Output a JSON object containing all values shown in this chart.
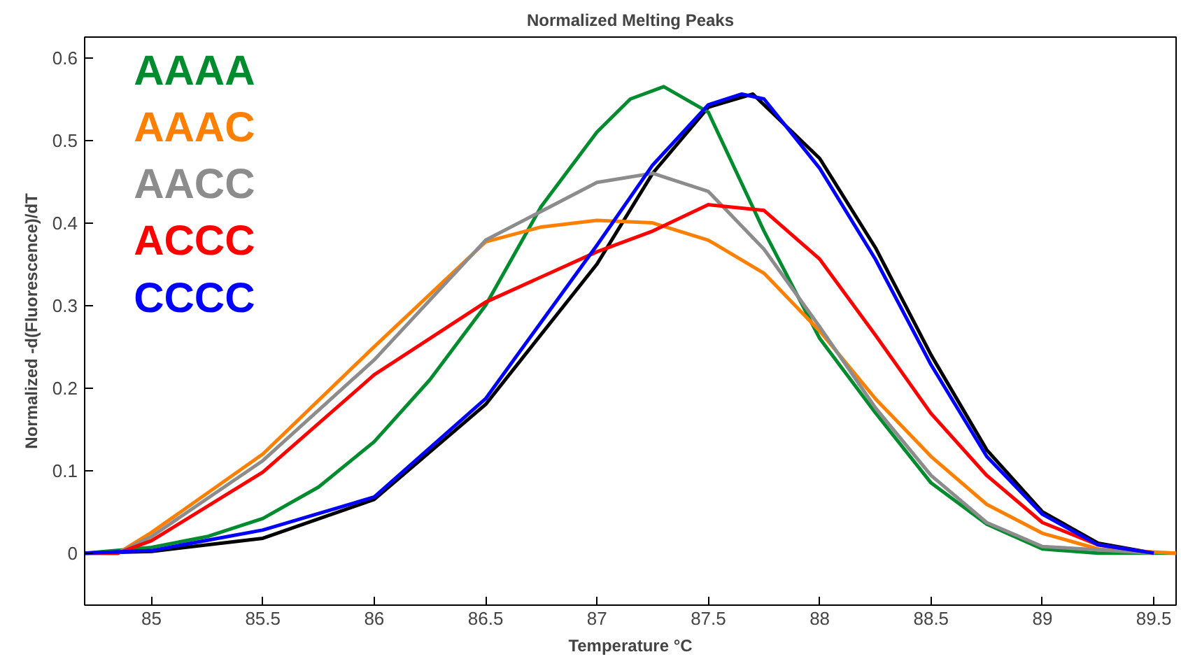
{
  "chart_data": {
    "type": "line",
    "title": "Normalized Melting Peaks",
    "xlabel": "Temperature °C",
    "ylabel": "Normalized -d(Fluorescence)/dT",
    "xlim": [
      84.7,
      89.6
    ],
    "ylim": [
      -0.063,
      0.625
    ],
    "xticks": [
      85,
      85.5,
      86,
      86.5,
      87,
      87.5,
      88,
      88.5,
      89,
      89.5
    ],
    "yticks": [
      0,
      0.1,
      0.2,
      0.3,
      0.4,
      0.5,
      0.6
    ],
    "grid": false,
    "legend": "top left",
    "marker": "none",
    "line_style": "solid",
    "series": [
      {
        "color": "#000000",
        "x": [
          84.7,
          85,
          85.5,
          86,
          86.5,
          87,
          87.25,
          87.5,
          87.7,
          88,
          88.25,
          88.5,
          88.75,
          89,
          89.25,
          89.5
        ],
        "values": [
          0,
          0.002,
          0.018,
          0.065,
          0.18,
          0.35,
          0.46,
          0.54,
          0.556,
          0.478,
          0.37,
          0.24,
          0.125,
          0.05,
          0.012,
          0
        ]
      },
      {
        "name": "AAAA",
        "color": "#008c2e",
        "x": [
          84.7,
          85,
          85.25,
          85.5,
          85.75,
          86,
          86.25,
          86.5,
          86.75,
          87,
          87.15,
          87.3,
          87.5,
          87.75,
          88,
          88.25,
          88.5,
          88.75,
          89,
          89.25,
          89.6
        ],
        "values": [
          0,
          0.007,
          0.02,
          0.042,
          0.08,
          0.135,
          0.21,
          0.3,
          0.42,
          0.51,
          0.55,
          0.565,
          0.534,
          0.39,
          0.26,
          0.17,
          0.085,
          0.035,
          0.005,
          0,
          0
        ]
      },
      {
        "name": "AAAC",
        "color": "#ff8000",
        "x": [
          84.7,
          84.85,
          85,
          85.5,
          86,
          86.5,
          86.75,
          87,
          87.25,
          87.5,
          87.75,
          88,
          88.25,
          88.5,
          88.75,
          89,
          89.25,
          89.6
        ],
        "values": [
          0,
          0,
          0.025,
          0.12,
          0.25,
          0.377,
          0.395,
          0.403,
          0.4,
          0.379,
          0.339,
          0.269,
          0.187,
          0.117,
          0.059,
          0.024,
          0.005,
          0
        ]
      },
      {
        "name": "AACC",
        "color": "#8c8c8c",
        "x": [
          84.7,
          84.85,
          85,
          85.5,
          86,
          86.5,
          87,
          87.25,
          87.5,
          87.75,
          88,
          88.25,
          88.5,
          88.75,
          89,
          89.5
        ],
        "values": [
          0,
          0,
          0.02,
          0.112,
          0.234,
          0.379,
          0.449,
          0.46,
          0.438,
          0.368,
          0.274,
          0.176,
          0.094,
          0.037,
          0.008,
          0
        ]
      },
      {
        "name": "ACCC",
        "color": "#ff0000",
        "x": [
          84.7,
          84.85,
          85,
          85.5,
          86,
          86.5,
          87,
          87.25,
          87.5,
          87.75,
          88,
          88.25,
          88.5,
          88.75,
          89,
          89.25,
          89.5
        ],
        "values": [
          0,
          0,
          0.015,
          0.098,
          0.216,
          0.304,
          0.365,
          0.39,
          0.422,
          0.415,
          0.356,
          0.264,
          0.169,
          0.094,
          0.037,
          0.01,
          0
        ]
      },
      {
        "name": "CCCC",
        "color": "#0000ff",
        "x": [
          84.7,
          85,
          85.5,
          86,
          86.5,
          86.75,
          87,
          87.25,
          87.5,
          87.65,
          87.75,
          88,
          88.25,
          88.5,
          88.75,
          89,
          89.25,
          89.5
        ],
        "values": [
          0,
          0.003,
          0.028,
          0.068,
          0.187,
          0.28,
          0.373,
          0.47,
          0.543,
          0.556,
          0.55,
          0.466,
          0.356,
          0.228,
          0.117,
          0.047,
          0.01,
          0
        ]
      }
    ]
  }
}
